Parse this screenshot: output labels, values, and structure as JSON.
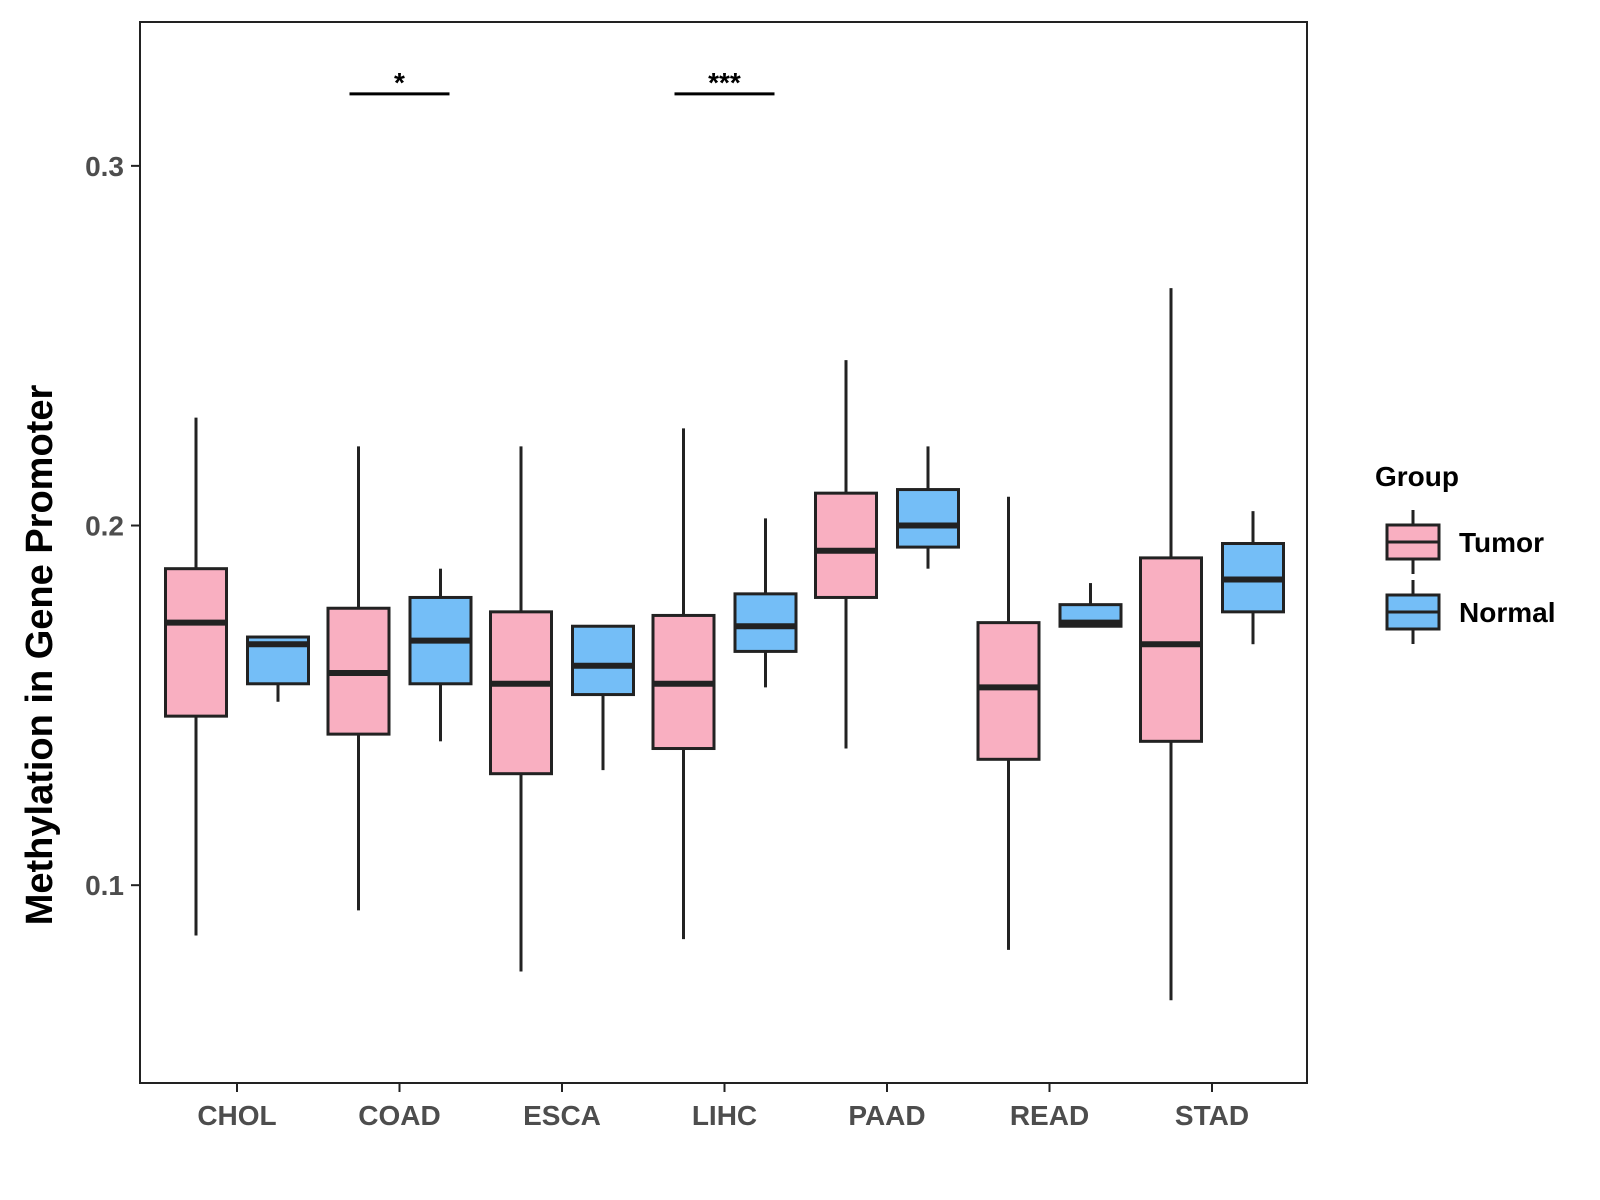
{
  "colors": {
    "tumor": "#F9AFC1",
    "normal": "#74BEF7",
    "outline": "#222222",
    "tick_text": "#4d4d4d"
  },
  "chart_data": {
    "type": "boxplot",
    "title": "",
    "xlabel": "",
    "ylabel": "Methylation in Gene Promoter",
    "ylim": [
      0.045,
      0.34
    ],
    "yticks": [
      0.1,
      0.2,
      0.3
    ],
    "ytick_labels": [
      "0.1",
      "0.2",
      "0.3"
    ],
    "categories": [
      "CHOL",
      "COAD",
      "ESCA",
      "LIHC",
      "PAAD",
      "READ",
      "STAD"
    ],
    "legend": {
      "title": "Group",
      "position": "right",
      "entries": [
        "Tumor",
        "Normal"
      ]
    },
    "series": [
      {
        "name": "Tumor",
        "boxes": [
          {
            "whisker_low": 0.086,
            "q1": 0.147,
            "median": 0.173,
            "q3": 0.188,
            "whisker_high": 0.23
          },
          {
            "whisker_low": 0.093,
            "q1": 0.142,
            "median": 0.159,
            "q3": 0.177,
            "whisker_high": 0.222
          },
          {
            "whisker_low": 0.076,
            "q1": 0.131,
            "median": 0.156,
            "q3": 0.176,
            "whisker_high": 0.222
          },
          {
            "whisker_low": 0.085,
            "q1": 0.138,
            "median": 0.156,
            "q3": 0.175,
            "whisker_high": 0.227
          },
          {
            "whisker_low": 0.138,
            "q1": 0.18,
            "median": 0.193,
            "q3": 0.209,
            "whisker_high": 0.246
          },
          {
            "whisker_low": 0.082,
            "q1": 0.135,
            "median": 0.155,
            "q3": 0.173,
            "whisker_high": 0.208
          },
          {
            "whisker_low": 0.068,
            "q1": 0.14,
            "median": 0.167,
            "q3": 0.191,
            "whisker_high": 0.266
          }
        ]
      },
      {
        "name": "Normal",
        "boxes": [
          {
            "whisker_low": 0.151,
            "q1": 0.156,
            "median": 0.167,
            "q3": 0.169,
            "whisker_high": 0.169
          },
          {
            "whisker_low": 0.14,
            "q1": 0.156,
            "median": 0.168,
            "q3": 0.18,
            "whisker_high": 0.188
          },
          {
            "whisker_low": 0.132,
            "q1": 0.153,
            "median": 0.161,
            "q3": 0.172,
            "whisker_high": 0.172
          },
          {
            "whisker_low": 0.155,
            "q1": 0.165,
            "median": 0.172,
            "q3": 0.181,
            "whisker_high": 0.202
          },
          {
            "whisker_low": 0.188,
            "q1": 0.194,
            "median": 0.2,
            "q3": 0.21,
            "whisker_high": 0.222
          },
          {
            "whisker_low": 0.172,
            "q1": 0.172,
            "median": 0.173,
            "q3": 0.178,
            "whisker_high": 0.184
          },
          {
            "whisker_low": 0.167,
            "q1": 0.176,
            "median": 0.185,
            "q3": 0.195,
            "whisker_high": 0.204
          }
        ]
      }
    ],
    "annotations": [
      {
        "category": "COAD",
        "label": "*",
        "y": 0.32
      },
      {
        "category": "LIHC",
        "label": "***",
        "y": 0.32
      }
    ]
  }
}
